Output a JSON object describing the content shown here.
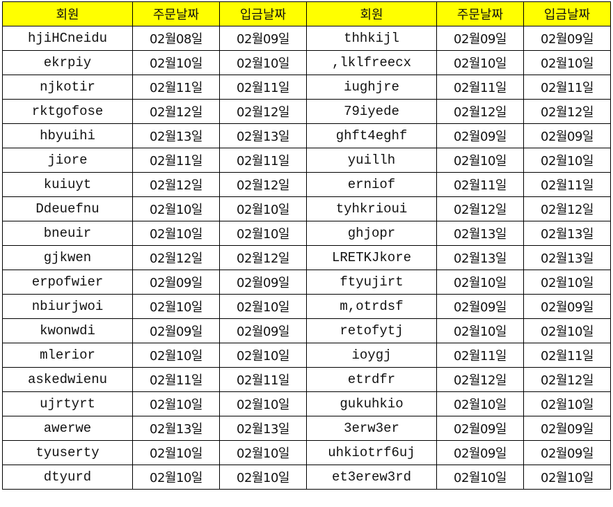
{
  "colors": {
    "header_bg": "#ffff00",
    "grid": "#000000"
  },
  "headers": [
    "회원",
    "주문날짜",
    "입금날짜",
    "회원",
    "주문날짜",
    "입금날짜"
  ],
  "rows": [
    [
      "hjiHCneidu",
      "02월08일",
      "02월09일",
      "thhkijl",
      "02월09일",
      "02월09일"
    ],
    [
      "ekrpiy",
      "02월10일",
      "02월10일",
      ",lklfreecx",
      "02월10일",
      "02월10일"
    ],
    [
      "njkotir",
      "02월11일",
      "02월11일",
      "iughjre",
      "02월11일",
      "02월11일"
    ],
    [
      "rktgofose",
      "02월12일",
      "02월12일",
      "79iyede",
      "02월12일",
      "02월12일"
    ],
    [
      "hbyuihi",
      "02월13일",
      "02월13일",
      "ghft4eghf",
      "02월09일",
      "02월09일"
    ],
    [
      "jiore",
      "02월11일",
      "02월11일",
      "yuillh",
      "02월10일",
      "02월10일"
    ],
    [
      "kuiuyt",
      "02월12일",
      "02월12일",
      "erniof",
      "02월11일",
      "02월11일"
    ],
    [
      "Ddeuefnu",
      "02월10일",
      "02월10일",
      "tyhkrioui",
      "02월12일",
      "02월12일"
    ],
    [
      "bneuir",
      "02월10일",
      "02월10일",
      "ghjopr",
      "02월13일",
      "02월13일"
    ],
    [
      "gjkwen",
      "02월12일",
      "02월12일",
      "LRETKJkore",
      "02월13일",
      "02월13일"
    ],
    [
      "erpofwier",
      "02월09일",
      "02월09일",
      "ftyujirt",
      "02월10일",
      "02월10일"
    ],
    [
      "nbiurjwoi",
      "02월10일",
      "02월10일",
      "m,otrdsf",
      "02월09일",
      "02월09일"
    ],
    [
      "kwonwdi",
      "02월09일",
      "02월09일",
      "retofytj",
      "02월10일",
      "02월10일"
    ],
    [
      "mlerior",
      "02월10일",
      "02월10일",
      "ioygj",
      "02월11일",
      "02월11일"
    ],
    [
      "askedwienu",
      "02월11일",
      "02월11일",
      "etrdfr",
      "02월12일",
      "02월12일"
    ],
    [
      "ujrtyrt",
      "02월10일",
      "02월10일",
      "gukuhkio",
      "02월10일",
      "02월10일"
    ],
    [
      "awerwe",
      "02월13일",
      "02월13일",
      "3erw3er",
      "02월09일",
      "02월09일"
    ],
    [
      "tyuserty",
      "02월10일",
      "02월10일",
      "uhkiotrf6uj",
      "02월09일",
      "02월09일"
    ],
    [
      "dtyurd",
      "02월10일",
      "02월10일",
      "et3erew3rd",
      "02월10일",
      "02월10일"
    ]
  ]
}
